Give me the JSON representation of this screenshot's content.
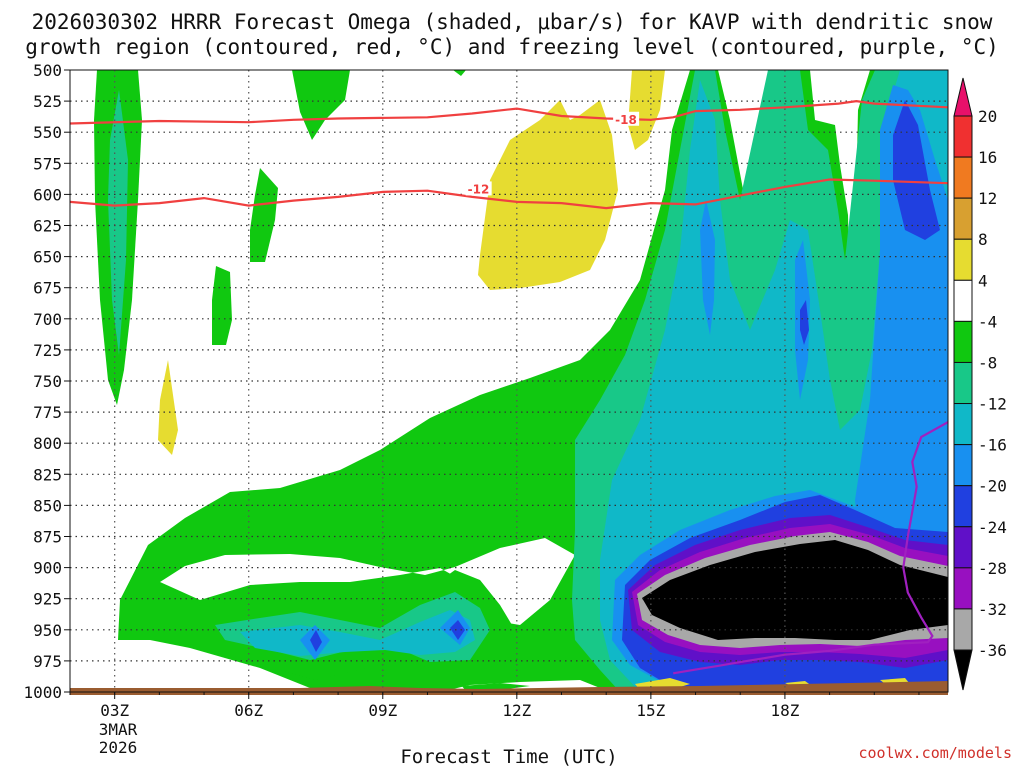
{
  "chart_data": {
    "type": "heatmap",
    "title_lines": [
      "2026030302 HRRR Forecast Omega (shaded, μbar/s) for KAVP with dendritic snow",
      "growth region (contoured, red, °C) and freezing level (contoured, purple, °C)"
    ],
    "xlabel": "Forecast Time (UTC)",
    "credit": "coolwx.com/models",
    "x_range_hours": [
      2.0,
      21.65
    ],
    "y_range_hPa": [
      500,
      1000
    ],
    "x_ticks": [
      {
        "hour": 3,
        "label": "03Z"
      },
      {
        "hour": 6,
        "label": "06Z"
      },
      {
        "hour": 9,
        "label": "09Z"
      },
      {
        "hour": 12,
        "label": "12Z"
      },
      {
        "hour": 15,
        "label": "15Z"
      },
      {
        "hour": 18,
        "label": "18Z"
      }
    ],
    "date_label": [
      "3MAR",
      "2026"
    ],
    "y_ticks": [
      500,
      525,
      550,
      575,
      600,
      625,
      650,
      675,
      700,
      725,
      750,
      775,
      800,
      825,
      850,
      875,
      900,
      925,
      950,
      975,
      1000
    ],
    "colorbar": {
      "levels": [
        20,
        16,
        12,
        8,
        4,
        -4,
        -8,
        -12,
        -16,
        -20,
        -24,
        -28,
        -32,
        -36
      ],
      "colors": [
        "#e8106a",
        "#f03030",
        "#f07a20",
        "#d8a030",
        "#e6dc30",
        "#ffffff",
        "#10c810",
        "#18c888",
        "#10b8c8",
        "#1890f0",
        "#2040e0",
        "#6010c8",
        "#9810c0",
        "#a8a8a8",
        "#000000"
      ]
    },
    "contours": [
      {
        "label": "-18",
        "color": "#f04040",
        "points": [
          [
            2,
            543
          ],
          [
            4,
            541
          ],
          [
            6,
            542
          ],
          [
            7,
            540
          ],
          [
            8,
            539
          ],
          [
            10,
            538
          ],
          [
            11,
            535
          ],
          [
            12,
            531
          ],
          [
            13,
            537
          ],
          [
            14,
            539
          ],
          [
            15,
            540
          ],
          [
            15.5,
            538
          ],
          [
            16,
            533
          ],
          [
            17,
            532
          ],
          [
            18,
            530
          ],
          [
            19.2,
            527
          ],
          [
            19.6,
            525
          ],
          [
            20,
            527
          ],
          [
            21.65,
            530
          ]
        ],
        "label_at": [
          14.2,
          540
        ]
      },
      {
        "label": "-12",
        "color": "#f04040",
        "points": [
          [
            2,
            606
          ],
          [
            3,
            609
          ],
          [
            4,
            607
          ],
          [
            5,
            603
          ],
          [
            6,
            609
          ],
          [
            7,
            605
          ],
          [
            8,
            602
          ],
          [
            9,
            598
          ],
          [
            10,
            597
          ],
          [
            11,
            602
          ],
          [
            12,
            606
          ],
          [
            13,
            607
          ],
          [
            14,
            611
          ],
          [
            15,
            607
          ],
          [
            16,
            608
          ],
          [
            17,
            601
          ],
          [
            18,
            594
          ],
          [
            19,
            588
          ],
          [
            20,
            589
          ],
          [
            21.65,
            591
          ]
        ],
        "label_at": [
          10.9,
          596
        ]
      },
      {
        "label": "freezing level",
        "color": "#a020c0",
        "points": [
          [
            15.5,
            985
          ],
          [
            16,
            982
          ],
          [
            16.5,
            979
          ],
          [
            17,
            976
          ],
          [
            17.5,
            973
          ],
          [
            18,
            970
          ],
          [
            19,
            967
          ],
          [
            20,
            962
          ],
          [
            21.2,
            960
          ],
          [
            21.3,
            955
          ],
          [
            21.05,
            940
          ],
          [
            20.75,
            920
          ],
          [
            20.65,
            900
          ],
          [
            20.75,
            875
          ],
          [
            20.85,
            855
          ],
          [
            20.95,
            835
          ],
          [
            20.85,
            815
          ],
          [
            21.05,
            795
          ],
          [
            21.65,
            783
          ]
        ]
      }
    ]
  }
}
